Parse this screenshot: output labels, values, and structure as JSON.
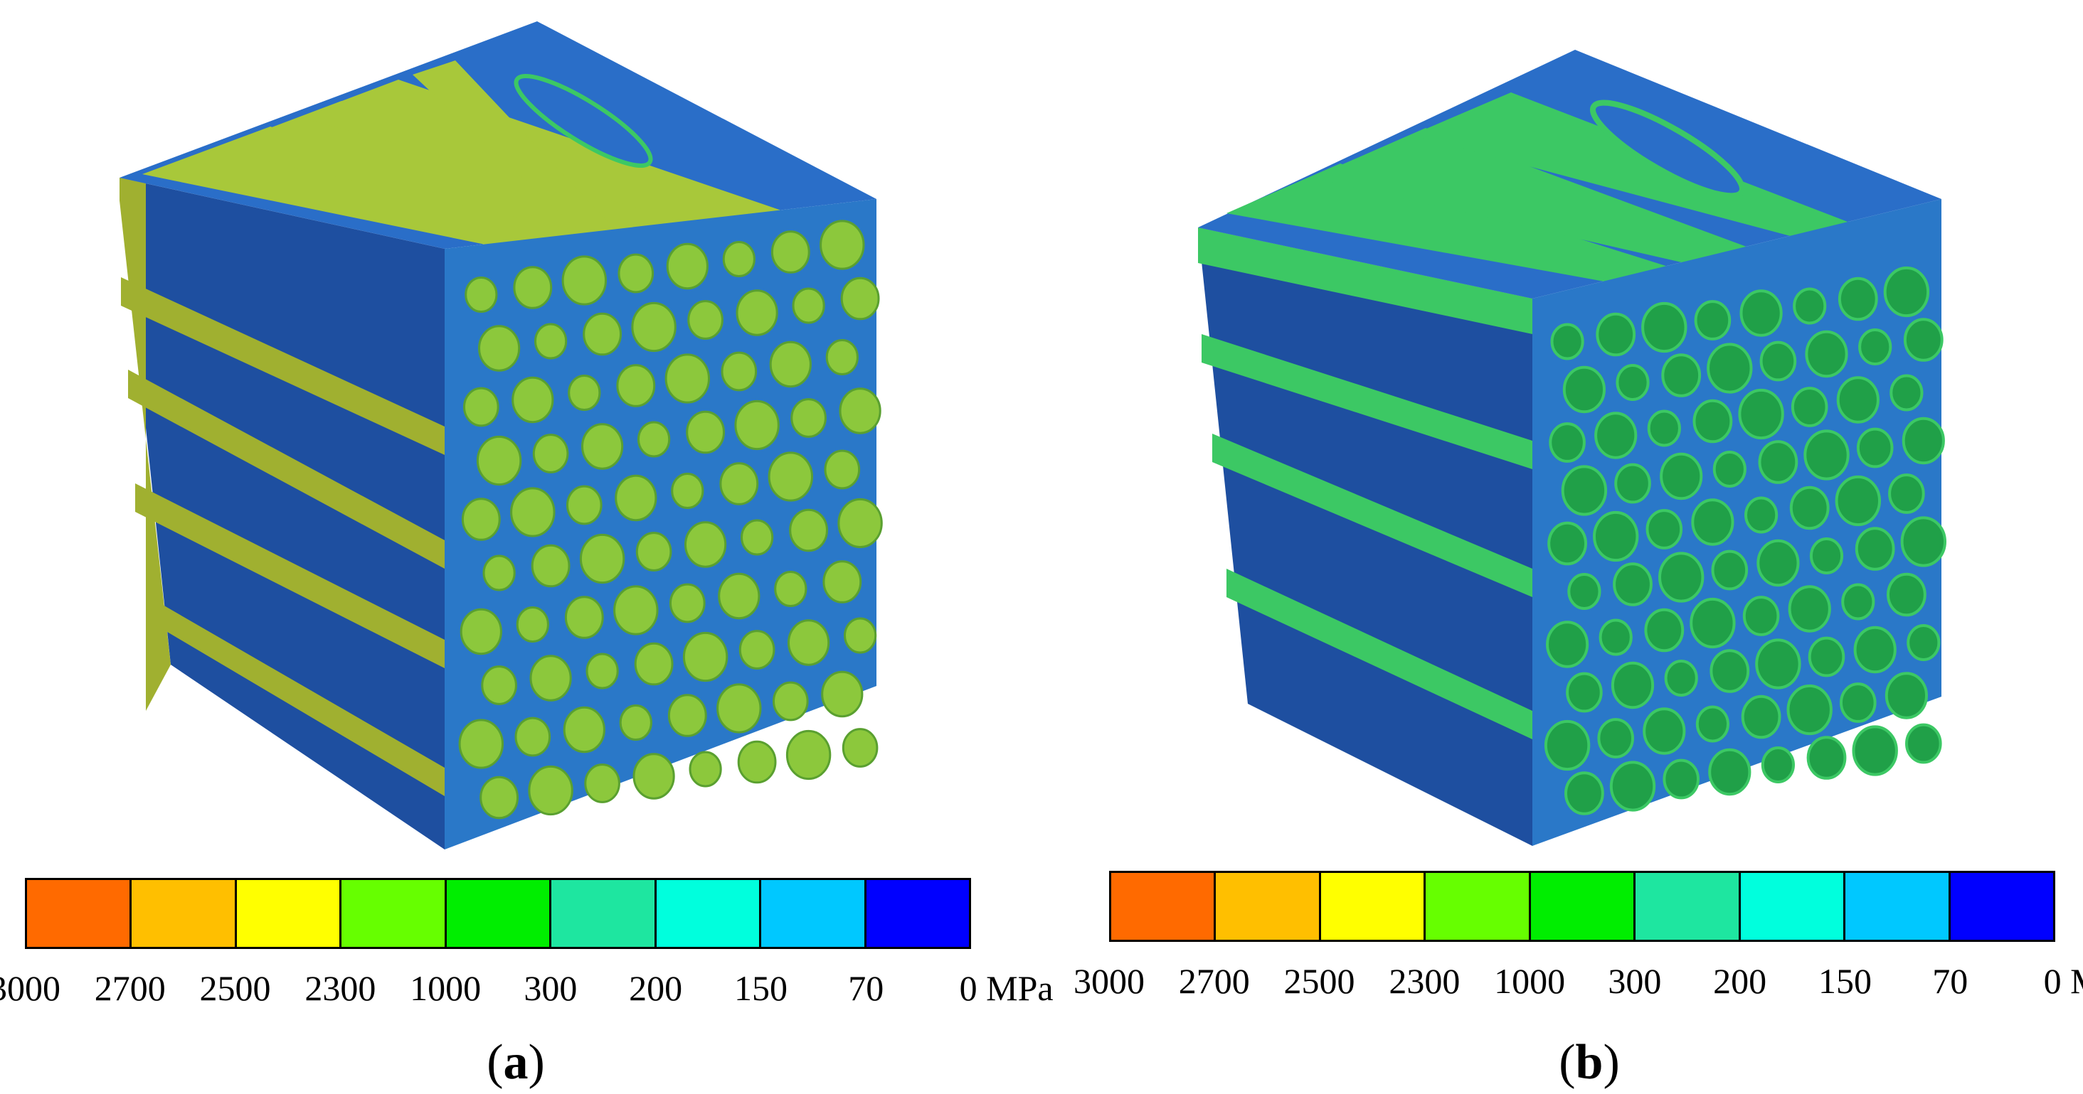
{
  "legend": {
    "colors": [
      "#ff6a00",
      "#ffbf00",
      "#ffff00",
      "#66ff00",
      "#00ee00",
      "#1ee6a0",
      "#00ffdd",
      "#00c8ff",
      "#0000ff"
    ],
    "ticks": [
      "3000",
      "2700",
      "2500",
      "2300",
      "1000",
      "300",
      "200",
      "150",
      "70",
      "0 MPa"
    ]
  },
  "panels": [
    {
      "id": "a",
      "caption_open": "(",
      "caption_letter": "a",
      "caption_close": ")",
      "fiber_color": "#8cc83c",
      "matrix_top": "#2a78c8",
      "matrix_side": "#1a4a9a"
    },
    {
      "id": "b",
      "caption_open": "(",
      "caption_letter": "b",
      "caption_close": ")",
      "fiber_color": "#3cc864",
      "matrix_top": "#2a6ec8",
      "matrix_side": "#18469a"
    }
  ]
}
